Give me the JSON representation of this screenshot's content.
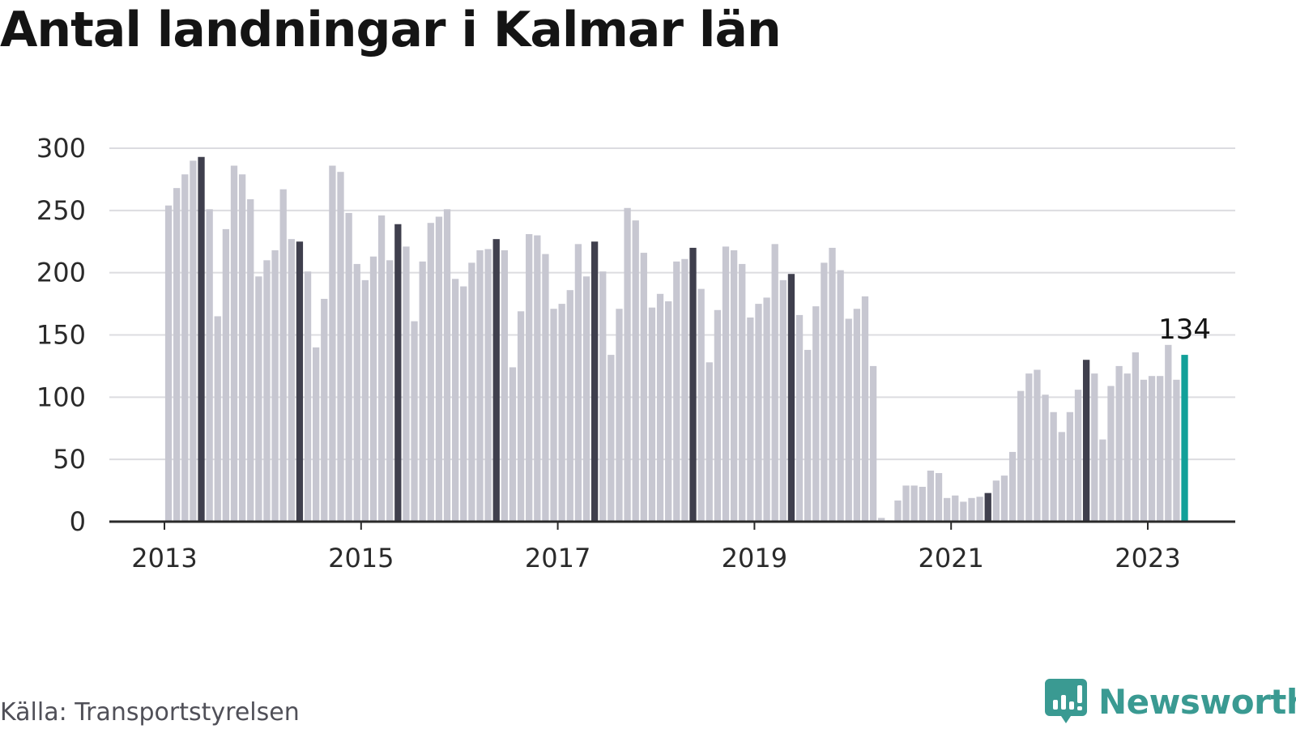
{
  "chart_data": {
    "type": "bar",
    "title": "Antal landningar i Kalmar län",
    "xlabel": "",
    "ylabel": "",
    "ylim": [
      0,
      300
    ],
    "yticks": [
      0,
      50,
      100,
      150,
      200,
      250,
      300
    ],
    "xticks": [
      "2013",
      "2015",
      "2017",
      "2019",
      "2021",
      "2023"
    ],
    "grid": true,
    "first_month": "2013-01",
    "last_month": "2023-05",
    "values": [
      254,
      268,
      279,
      290,
      293,
      251,
      165,
      235,
      286,
      279,
      259,
      197,
      210,
      218,
      267,
      227,
      225,
      201,
      140,
      179,
      286,
      281,
      248,
      207,
      194,
      213,
      246,
      210,
      239,
      221,
      161,
      209,
      240,
      245,
      251,
      195,
      189,
      208,
      218,
      219,
      227,
      218,
      124,
      169,
      231,
      230,
      215,
      171,
      175,
      186,
      223,
      197,
      225,
      201,
      134,
      171,
      252,
      242,
      216,
      172,
      183,
      177,
      209,
      211,
      220,
      187,
      128,
      170,
      221,
      218,
      207,
      164,
      175,
      180,
      223,
      194,
      199,
      166,
      138,
      173,
      208,
      220,
      202,
      163,
      171,
      181,
      125,
      3,
      1,
      17,
      29,
      29,
      28,
      41,
      39,
      19,
      21,
      16,
      19,
      20,
      23,
      33,
      37,
      56,
      105,
      119,
      122,
      102,
      88,
      72,
      88,
      106,
      130,
      119,
      66,
      109,
      125,
      119,
      136,
      114,
      117,
      117,
      142,
      114,
      134
    ],
    "colors": {
      "default": "#c7c7d1",
      "may": "#3f3f4d",
      "latest": "#12a099"
    },
    "highlight": "Maj varje år mörkare, senaste månaden i turkos",
    "annotation": {
      "label": "134"
    }
  },
  "source": "Källa: Transportstyrelsen",
  "brand": {
    "name": "Newsworthy",
    "logo_icon": "newsworthy-logo-icon",
    "color": "#3a9a92"
  }
}
